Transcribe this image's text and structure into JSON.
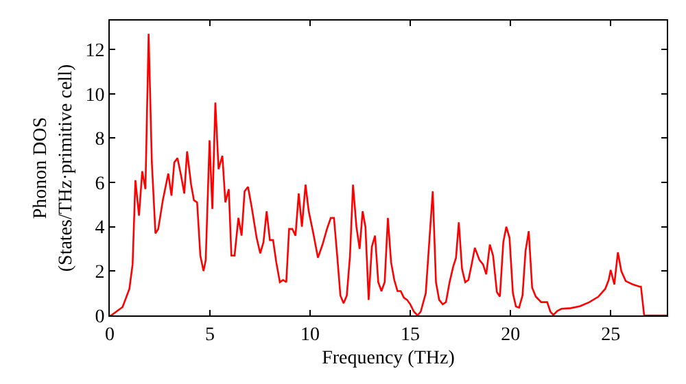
{
  "chart_data": {
    "type": "line",
    "xlabel": "Frequency (THz)",
    "ylabel": "Phonon DOS\n(States/THz·primitive cell)",
    "x": [
      0,
      0.07,
      0.64,
      0.98,
      1.14,
      1.28,
      1.46,
      1.62,
      1.78,
      1.94,
      2.1,
      2.28,
      2.42,
      2.65,
      2.92,
      3.08,
      3.22,
      3.38,
      3.56,
      3.72,
      3.86,
      4.06,
      4.2,
      4.36,
      4.52,
      4.68,
      4.79,
      4.98,
      5.12,
      5.27,
      5.43,
      5.62,
      5.77,
      5.94,
      6.07,
      6.23,
      6.42,
      6.58,
      6.73,
      6.9,
      7.08,
      7.33,
      7.51,
      7.67,
      7.83,
      7.99,
      8.15,
      8.31,
      8.49,
      8.65,
      8.81,
      8.95,
      9.11,
      9.27,
      9.43,
      9.59,
      9.77,
      9.93,
      10.16,
      10.39,
      10.62,
      10.84,
      11.03,
      11.19,
      11.35,
      11.51,
      11.67,
      11.83,
      11.99,
      12.14,
      12.31,
      12.47,
      12.62,
      12.76,
      12.92,
      13.08,
      13.24,
      13.4,
      13.56,
      13.72,
      13.88,
      14.04,
      14.2,
      14.36,
      14.52,
      14.68,
      14.84,
      15.0,
      15.18,
      15.36,
      15.52,
      15.77,
      15.96,
      16.12,
      16.28,
      16.44,
      16.62,
      16.78,
      16.96,
      17.14,
      17.28,
      17.42,
      17.58,
      17.74,
      17.9,
      18.06,
      18.22,
      18.45,
      18.63,
      18.79,
      18.97,
      19.13,
      19.32,
      19.47,
      19.64,
      19.79,
      19.95,
      20.12,
      20.27,
      20.43,
      20.6,
      20.75,
      20.91,
      21.08,
      21.26,
      21.53,
      21.83,
      21.99,
      22.14,
      22.33,
      22.55,
      23.01,
      23.47,
      23.92,
      24.38,
      24.73,
      24.9,
      25.0,
      25.18,
      25.36,
      25.53,
      25.75,
      26.1,
      26.44,
      26.51,
      26.67,
      27.8
    ],
    "series": [
      {
        "color": "#ff0000",
        "values": [
          0,
          0,
          0.38,
          1.2,
          2.3,
          6.1,
          4.5,
          6.5,
          5.7,
          12.7,
          6.9,
          3.7,
          3.9,
          5.2,
          6.4,
          5.4,
          6.9,
          7.1,
          6.3,
          5.5,
          7.4,
          5.9,
          5.2,
          5.1,
          2.7,
          2.0,
          2.5,
          7.9,
          4.8,
          9.6,
          6.6,
          7.2,
          5.1,
          5.7,
          2.7,
          2.7,
          4.4,
          3.6,
          5.6,
          5.8,
          4.9,
          3.5,
          2.8,
          3.3,
          4.7,
          3.4,
          3.4,
          2.4,
          1.5,
          1.6,
          1.5,
          3.9,
          3.9,
          3.6,
          5.5,
          4.0,
          5.9,
          4.7,
          3.7,
          2.6,
          3.2,
          3.9,
          4.4,
          4.4,
          2.7,
          0.9,
          0.55,
          0.9,
          2.7,
          5.9,
          4.0,
          3.0,
          4.7,
          4.0,
          0.7,
          3.1,
          3.6,
          1.5,
          1.1,
          1.5,
          4.4,
          2.4,
          1.6,
          1.1,
          1.1,
          0.8,
          0.7,
          0.5,
          0.17,
          0,
          0.17,
          1.0,
          3.5,
          5.6,
          1.5,
          0.7,
          0.5,
          0.6,
          1.5,
          2.2,
          2.6,
          4.2,
          2.1,
          1.5,
          1.6,
          2.3,
          3.05,
          2.5,
          2.3,
          1.85,
          3.2,
          2.7,
          1.05,
          0.85,
          3.3,
          4.0,
          3.5,
          1.0,
          0.4,
          0.35,
          0.9,
          2.9,
          3.8,
          1.25,
          0.85,
          0.6,
          0.6,
          0.17,
          0.02,
          0.2,
          0.3,
          0.33,
          0.42,
          0.59,
          0.84,
          1.2,
          1.6,
          2.05,
          1.4,
          2.85,
          2.0,
          1.55,
          1.4,
          1.3,
          1.3,
          0,
          0
        ]
      }
    ],
    "xlim": [
      0,
      27.8
    ],
    "ylim": [
      0,
      13.3
    ],
    "xticks": [
      0,
      5,
      10,
      15,
      20,
      25
    ],
    "yticks": [
      0,
      2,
      4,
      6,
      8,
      10,
      12
    ],
    "marker": "none",
    "line_style": "solid"
  }
}
